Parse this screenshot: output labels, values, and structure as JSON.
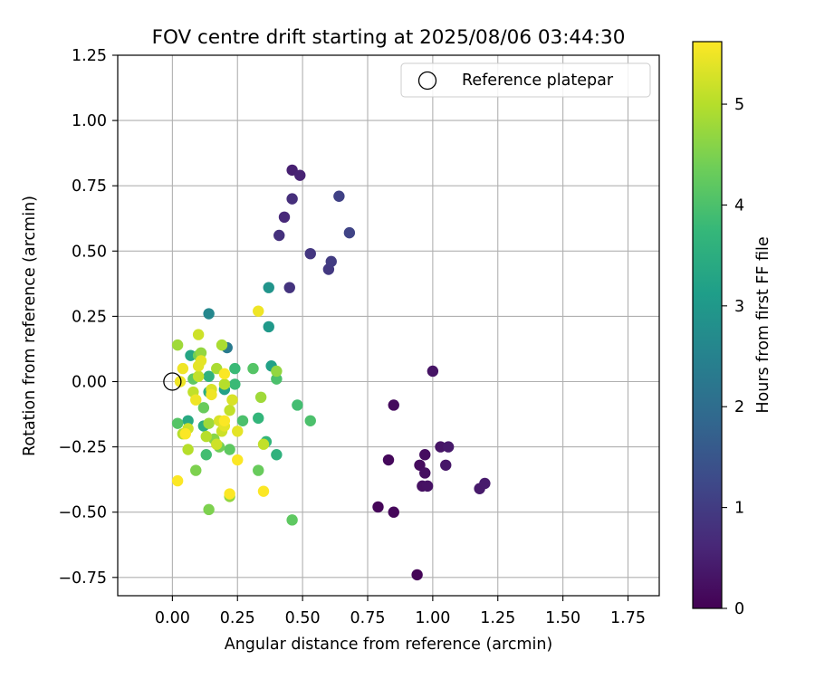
{
  "chart_data": {
    "type": "scatter",
    "title": "FOV centre drift starting at 2025/08/06 03:44:30",
    "xlabel": "Angular distance from reference (arcmin)",
    "ylabel": "Rotation from reference (arcmin)",
    "xlim": [
      -0.21,
      1.87
    ],
    "ylim": [
      -0.82,
      1.25
    ],
    "xticks": [
      0.0,
      0.25,
      0.5,
      0.75,
      1.0,
      1.25,
      1.5,
      1.75
    ],
    "xtick_labels": [
      "0.00",
      "0.25",
      "0.50",
      "0.75",
      "1.00",
      "1.25",
      "1.50",
      "1.75"
    ],
    "yticks": [
      -0.75,
      -0.5,
      -0.25,
      0.0,
      0.25,
      0.5,
      0.75,
      1.0,
      1.25
    ],
    "ytick_labels": [
      "−0.75",
      "−0.50",
      "−0.25",
      "0.00",
      "0.25",
      "0.50",
      "0.75",
      "1.00",
      "1.25"
    ],
    "grid": true,
    "legend": {
      "position": "top-right",
      "entries": [
        "Reference platepar"
      ]
    },
    "reference_point": {
      "x": 0.0,
      "y": 0.0
    },
    "colorbar": {
      "label": "Hours from first FF file",
      "range": [
        0,
        5.62
      ],
      "ticks": [
        0,
        1,
        2,
        3,
        4,
        5
      ],
      "colormap": "viridis",
      "colors": [
        "#440154",
        "#482878",
        "#3e4989",
        "#31688e",
        "#26828e",
        "#1f9e89",
        "#35b779",
        "#6ece58",
        "#b5de2b",
        "#fde725"
      ]
    },
    "points": [
      {
        "x": 0.94,
        "y": -0.74,
        "c": 0.05
      },
      {
        "x": 0.79,
        "y": -0.48,
        "c": 0.08
      },
      {
        "x": 0.85,
        "y": -0.5,
        "c": 0.1
      },
      {
        "x": 0.83,
        "y": -0.3,
        "c": 0.12
      },
      {
        "x": 0.85,
        "y": -0.09,
        "c": 0.15
      },
      {
        "x": 0.95,
        "y": -0.32,
        "c": 0.18
      },
      {
        "x": 0.97,
        "y": -0.28,
        "c": 0.2
      },
      {
        "x": 0.97,
        "y": -0.35,
        "c": 0.22
      },
      {
        "x": 0.96,
        "y": -0.4,
        "c": 0.25
      },
      {
        "x": 0.98,
        "y": -0.4,
        "c": 0.28
      },
      {
        "x": 1.0,
        "y": 0.04,
        "c": 0.3
      },
      {
        "x": 1.03,
        "y": -0.25,
        "c": 0.32
      },
      {
        "x": 1.05,
        "y": -0.32,
        "c": 0.35
      },
      {
        "x": 1.06,
        "y": -0.25,
        "c": 0.38
      },
      {
        "x": 1.18,
        "y": -0.41,
        "c": 0.4
      },
      {
        "x": 1.2,
        "y": -0.39,
        "c": 0.42
      },
      {
        "x": 0.46,
        "y": 0.81,
        "c": 0.5
      },
      {
        "x": 0.49,
        "y": 0.79,
        "c": 0.55
      },
      {
        "x": 0.43,
        "y": 0.63,
        "c": 0.65
      },
      {
        "x": 0.46,
        "y": 0.7,
        "c": 0.75
      },
      {
        "x": 0.41,
        "y": 0.56,
        "c": 0.8
      },
      {
        "x": 0.45,
        "y": 0.36,
        "c": 0.85
      },
      {
        "x": 0.53,
        "y": 0.49,
        "c": 0.9
      },
      {
        "x": 0.6,
        "y": 0.43,
        "c": 0.95
      },
      {
        "x": 0.61,
        "y": 0.46,
        "c": 1.0
      },
      {
        "x": 0.64,
        "y": 0.71,
        "c": 1.1
      },
      {
        "x": 0.68,
        "y": 0.57,
        "c": 1.15
      },
      {
        "x": 0.21,
        "y": 0.13,
        "c": 2.3
      },
      {
        "x": 0.14,
        "y": 0.26,
        "c": 2.6
      },
      {
        "x": 0.37,
        "y": 0.36,
        "c": 2.9
      },
      {
        "x": 0.37,
        "y": 0.21,
        "c": 3.0
      },
      {
        "x": 0.38,
        "y": 0.06,
        "c": 3.2
      },
      {
        "x": 0.2,
        "y": -0.03,
        "c": 3.2
      },
      {
        "x": 0.07,
        "y": 0.1,
        "c": 3.3
      },
      {
        "x": 0.06,
        "y": -0.15,
        "c": 3.4
      },
      {
        "x": 0.12,
        "y": -0.17,
        "c": 3.5
      },
      {
        "x": 0.14,
        "y": -0.04,
        "c": 3.5
      },
      {
        "x": 0.4,
        "y": -0.28,
        "c": 3.6
      },
      {
        "x": 0.14,
        "y": 0.02,
        "c": 3.6
      },
      {
        "x": 0.33,
        "y": -0.14,
        "c": 3.7
      },
      {
        "x": 0.36,
        "y": -0.23,
        "c": 3.7
      },
      {
        "x": 0.24,
        "y": -0.01,
        "c": 3.8
      },
      {
        "x": 0.24,
        "y": 0.05,
        "c": 3.8
      },
      {
        "x": 0.13,
        "y": -0.28,
        "c": 3.9
      },
      {
        "x": 0.48,
        "y": -0.09,
        "c": 3.9
      },
      {
        "x": 0.4,
        "y": 0.01,
        "c": 4.0
      },
      {
        "x": 0.53,
        "y": -0.15,
        "c": 4.0
      },
      {
        "x": 0.27,
        "y": -0.15,
        "c": 4.0
      },
      {
        "x": 0.31,
        "y": 0.05,
        "c": 4.1
      },
      {
        "x": 0.02,
        "y": -0.16,
        "c": 4.1
      },
      {
        "x": 0.08,
        "y": 0.01,
        "c": 4.2
      },
      {
        "x": 0.46,
        "y": -0.53,
        "c": 4.2
      },
      {
        "x": 0.22,
        "y": -0.26,
        "c": 4.2
      },
      {
        "x": 0.33,
        "y": -0.34,
        "c": 4.3
      },
      {
        "x": 0.12,
        "y": -0.1,
        "c": 4.3
      },
      {
        "x": 0.18,
        "y": -0.25,
        "c": 4.4
      },
      {
        "x": 0.1,
        "y": 0.1,
        "c": 4.4
      },
      {
        "x": 0.09,
        "y": -0.34,
        "c": 4.5
      },
      {
        "x": 0.14,
        "y": -0.49,
        "c": 4.5
      },
      {
        "x": 0.16,
        "y": -0.22,
        "c": 4.6
      },
      {
        "x": 0.4,
        "y": 0.04,
        "c": 4.7
      },
      {
        "x": 0.11,
        "y": 0.11,
        "c": 4.7
      },
      {
        "x": 0.22,
        "y": -0.44,
        "c": 4.7
      },
      {
        "x": 0.34,
        "y": -0.06,
        "c": 4.8
      },
      {
        "x": 0.02,
        "y": 0.14,
        "c": 4.8
      },
      {
        "x": 0.14,
        "y": -0.16,
        "c": 4.8
      },
      {
        "x": 0.17,
        "y": 0.05,
        "c": 4.9
      },
      {
        "x": 0.19,
        "y": 0.14,
        "c": 4.9
      },
      {
        "x": 0.04,
        "y": -0.2,
        "c": 5.0
      },
      {
        "x": 0.13,
        "y": -0.21,
        "c": 5.0
      },
      {
        "x": 0.06,
        "y": -0.26,
        "c": 5.0
      },
      {
        "x": 0.2,
        "y": -0.01,
        "c": 5.0
      },
      {
        "x": 0.1,
        "y": 0.02,
        "c": 5.1
      },
      {
        "x": 0.08,
        "y": -0.04,
        "c": 5.1
      },
      {
        "x": 0.22,
        "y": -0.11,
        "c": 5.1
      },
      {
        "x": 0.35,
        "y": -0.24,
        "c": 5.1
      },
      {
        "x": 0.17,
        "y": -0.24,
        "c": 5.2
      },
      {
        "x": 0.19,
        "y": -0.19,
        "c": 5.2
      },
      {
        "x": 0.1,
        "y": 0.18,
        "c": 5.2
      },
      {
        "x": 0.06,
        "y": -0.18,
        "c": 5.2
      },
      {
        "x": 0.15,
        "y": -0.03,
        "c": 5.3
      },
      {
        "x": 0.23,
        "y": -0.07,
        "c": 5.3
      },
      {
        "x": 0.18,
        "y": -0.15,
        "c": 5.3
      },
      {
        "x": 0.1,
        "y": 0.06,
        "c": 5.4
      },
      {
        "x": 0.11,
        "y": 0.08,
        "c": 5.4
      },
      {
        "x": 0.2,
        "y": -0.17,
        "c": 5.4
      },
      {
        "x": 0.25,
        "y": -0.19,
        "c": 5.4
      },
      {
        "x": 0.09,
        "y": -0.07,
        "c": 5.5
      },
      {
        "x": 0.33,
        "y": 0.27,
        "c": 5.5
      },
      {
        "x": 0.03,
        "y": 0.0,
        "c": 5.5
      },
      {
        "x": 0.04,
        "y": 0.05,
        "c": 5.5
      },
      {
        "x": 0.15,
        "y": -0.05,
        "c": 5.5
      },
      {
        "x": 0.2,
        "y": -0.15,
        "c": 5.6
      },
      {
        "x": 0.02,
        "y": -0.38,
        "c": 5.6
      },
      {
        "x": 0.25,
        "y": -0.3,
        "c": 5.6
      },
      {
        "x": 0.35,
        "y": -0.42,
        "c": 5.6
      },
      {
        "x": 0.22,
        "y": -0.43,
        "c": 5.6
      },
      {
        "x": 0.2,
        "y": 0.03,
        "c": 5.6
      },
      {
        "x": 0.05,
        "y": -0.2,
        "c": 5.6
      }
    ]
  }
}
